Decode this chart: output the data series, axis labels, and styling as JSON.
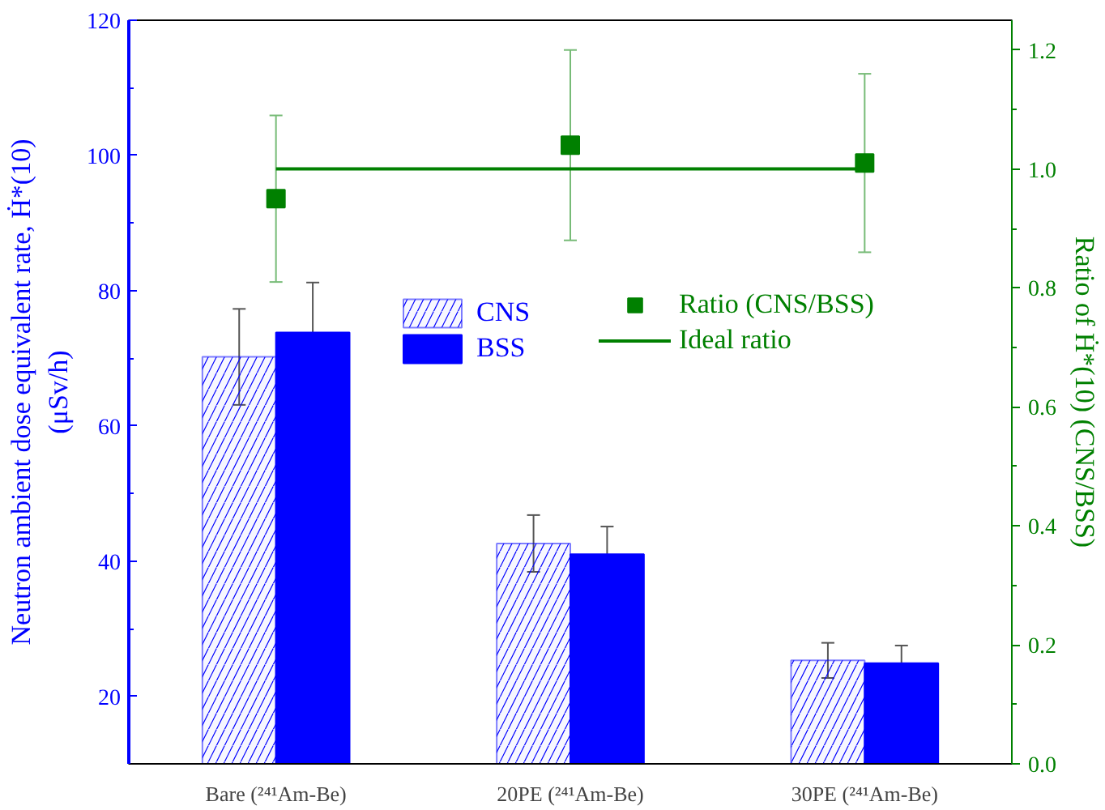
{
  "chart_data": {
    "type": "bar",
    "categories": [
      "Bare (²⁴¹Am-Be)",
      "20PE (²⁴¹Am-Be)",
      "30PE (²⁴¹Am-Be)"
    ],
    "ylabel": "Neutron ambient dose equivalent rate, Ḣ*(10)\n(μSv/h)",
    "y2label": "Ratio of Ḣ*(10) (CNS/BSS)",
    "ylim": [
      10,
      120
    ],
    "yticks": [
      20,
      40,
      60,
      80,
      100,
      120
    ],
    "y2lim": [
      0,
      1.25
    ],
    "y2ticks": [
      {
        "value": 0,
        "label": "0.0"
      },
      {
        "value": 0.2,
        "label": "0.2"
      },
      {
        "value": 0.4,
        "label": "0.4"
      },
      {
        "value": 0.6,
        "label": "0.6"
      },
      {
        "value": 0.8,
        "label": "0.8"
      },
      {
        "value": 1.0,
        "label": "1.0"
      },
      {
        "value": 1.2,
        "label": "1.2"
      }
    ],
    "series": [
      {
        "name": "CNS",
        "color": "#0000ff",
        "values": [
          70.2,
          42.6,
          25.3
        ],
        "errors": [
          7.1,
          4.2,
          2.6
        ]
      },
      {
        "name": "BSS",
        "color": "#0000ff",
        "values": [
          73.8,
          41.0,
          24.9
        ],
        "errors": [
          7.4,
          4.1,
          2.6
        ]
      },
      {
        "name": "Ratio (CNS/BSS)",
        "type": "scatter",
        "axis": "y2",
        "marker": "square",
        "color": "#008000",
        "values": [
          0.95,
          1.04,
          1.01
        ],
        "errors": [
          0.14,
          0.16,
          0.15
        ]
      },
      {
        "name": "Ideal ratio",
        "type": "line",
        "axis": "y2",
        "color": "#008000",
        "values": [
          1.0,
          1.0,
          1.0
        ]
      }
    ],
    "legend": "top",
    "grid": false
  }
}
